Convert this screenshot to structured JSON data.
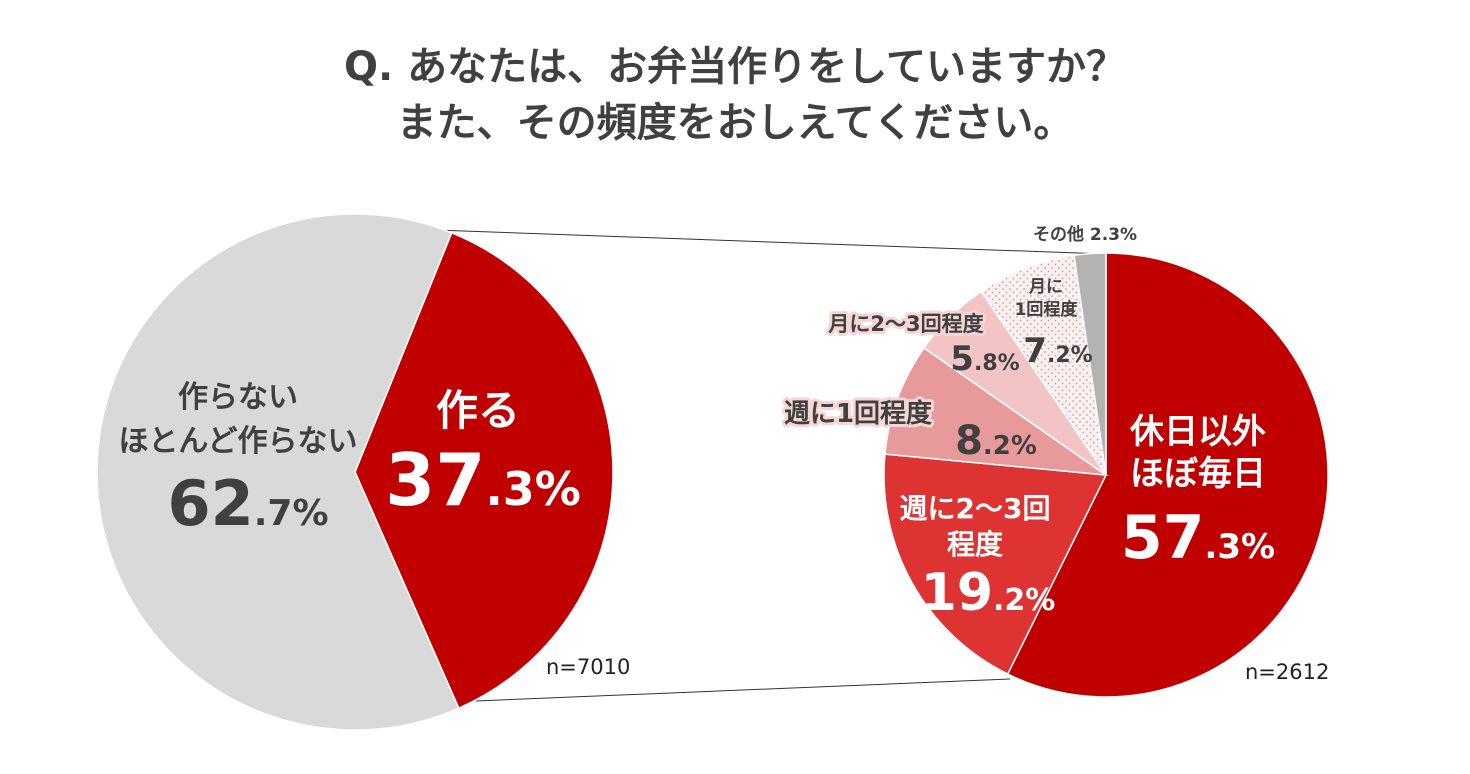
{
  "title_line1": "Q. あなたは、お弁当作りをしていますか？",
  "title_line2": "また、その頻度をおしえてください。",
  "chart_data": [
    {
      "type": "pie",
      "n_label": "n=7010",
      "slices": [
        {
          "label": "作る",
          "pct_int": "37",
          "pct_dec": ".3%",
          "value": 37.3,
          "color": "#c00000"
        },
        {
          "label": "作らない\nほとんど作らない",
          "pct_int": "62",
          "pct_dec": ".7%",
          "value": 62.7,
          "color": "#d9d9d9"
        }
      ]
    },
    {
      "type": "pie",
      "n_label": "n=2612",
      "slices": [
        {
          "label": "休日以外\nほぼ毎日",
          "pct_int": "57",
          "pct_dec": ".3%",
          "value": 57.3,
          "color": "#c00000"
        },
        {
          "label": "週に2～3回\n程度",
          "pct_int": "19",
          "pct_dec": ".2%",
          "value": 19.2,
          "color": "#dd3333"
        },
        {
          "label": "週に1回程度",
          "pct_int": "8",
          "pct_dec": ".2%",
          "value": 8.2,
          "color": "#e8999b"
        },
        {
          "label": "月に2～3回程度",
          "pct_int": "5",
          "pct_dec": ".8%",
          "value": 5.8,
          "color": "#f2c4c5"
        },
        {
          "label": "月に\n1回程度",
          "pct_int": "7",
          "pct_dec": ".2%",
          "value": 7.2,
          "color": "#fbeeee",
          "pattern": "dots"
        },
        {
          "label": "その他",
          "pct_int": "",
          "pct_dec": "2.3%",
          "value": 2.3,
          "color": "#b3b3b3"
        }
      ]
    }
  ]
}
